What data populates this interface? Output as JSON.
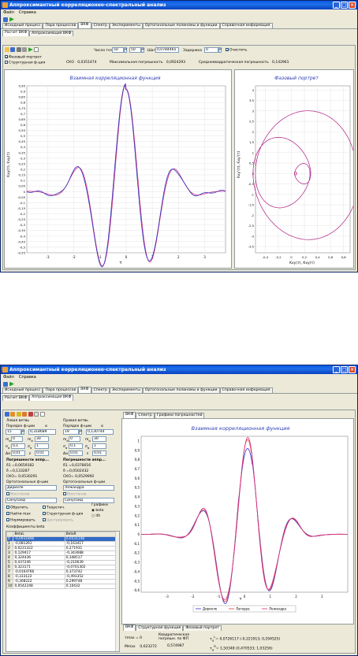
{
  "app": {
    "title": "Аппроксимантный корреляционно-спектральный анализ"
  },
  "menu": [
    "Файл",
    "Справка"
  ],
  "main_tabs": [
    "Исходный процесс",
    "Пара процессов",
    "ВКФ",
    "Спектр",
    "Эксперименты",
    "Ортогональные полиномы и функции",
    "Справочная информация"
  ],
  "top": {
    "subtabs": [
      "Расчет ВКФ",
      "Аппроксимация ВКФ"
    ],
    "points_label": "Число точек",
    "points1": "50",
    "points2": "50",
    "step_label": "Шаг",
    "step": "0,0784465",
    "delay_label": "Задержка",
    "delay": "0",
    "clear_label": "Очистить",
    "phase_label": "Фазовый портрет",
    "struct_label": "Структурная ф-ция",
    "sko_label": "СКО",
    "sko": "0,0351474",
    "maxerr_label": "Максимальная погрешность",
    "maxerr": "0,0924293",
    "rms_label": "Среднеквадратическая погрешность",
    "rms": "0,142961",
    "chart1": {
      "title": "Взаимная корреляционная функция",
      "ylabel": "Kxy(τ), Kxy(τ)",
      "xlabel": "τ",
      "yticks": [
        "0,95",
        "0,9",
        "0,85",
        "0,8",
        "0,75",
        "0,7",
        "0,65",
        "0,6",
        "0,55",
        "0,5",
        "0,45",
        "0,4",
        "0,35",
        "0,3",
        "0,25",
        "0,2",
        "0,15",
        "0,1",
        "0,05",
        "0",
        "-0,05",
        "-0,1",
        "-0,15",
        "-0,2",
        "-0,25",
        "-0,3",
        "-0,35",
        "-0,4",
        "-0,45",
        "-0,5",
        "-0,55"
      ],
      "xticks": [
        "-3",
        "-2",
        "-1",
        "0",
        "1",
        "2",
        "3"
      ]
    },
    "chart2": {
      "title": "Фазовый портрет",
      "ylabel": "Kxy'(τ), Kxy'(τ)",
      "xlabel": "Kxy(τ), Kxy(τ)",
      "yticks": [
        "4",
        "3,5",
        "3",
        "2,5",
        "2",
        "1,5",
        "1",
        "0,5",
        "0",
        "-0,5",
        "-1",
        "-1,5",
        "-2",
        "-2,5",
        "-3",
        "-3,5"
      ],
      "xticks": [
        "-0,4",
        "-0,2",
        "0",
        "0,2",
        "0,4",
        "0,6",
        "0,8"
      ]
    }
  },
  "bottom": {
    "subtabs": [
      "Расчет ВКФ",
      "Аппроксимация ВКФ"
    ],
    "right_tabs": [
      "ВКФ",
      "Спектр",
      "Графики погрешностей"
    ],
    "left_branch": "Левая ветвь",
    "right_branch": "Правая ветвь",
    "order_label": "Порядок ф-ции",
    "alpha_label": "α",
    "left_order": "15",
    "left_alpha": "0,318689",
    "right_order": "19",
    "right_alpha": "0,130744",
    "m_l1": "0",
    "m_l2": "30",
    "m_r1": "0",
    "m_r2": "30",
    "s_l1": "0,1",
    "s_l2": "1",
    "s_r1": "0,1",
    "s_r2": "1",
    "d_l1": "0,01",
    "d_l2": "0,01",
    "d_r1": "0,01",
    "d_r2": "0,01",
    "err_title": "Погрешности аппр...",
    "d1_l": "δ1 =0,0659182",
    "d_l": "δ =0,133287",
    "sko_l": "СКО= 0,0530291",
    "d1_r": "δ1 =0,0378016",
    "d_r": "δ =0,0502432",
    "sko_r": "СКО= 0,0529992",
    "orth_label": "Ортогональные ф-ции",
    "orth_l": "Дирихле",
    "orth_r": "Лежандра",
    "orth_l2": "Синусоид",
    "orth_r2": "Синусоид",
    "restore_label": "Восстанов",
    "cb": [
      "Обратить",
      "Найти max",
      "Нормировать",
      "Теоретич.",
      "Структурная ф-ция",
      "Центрировать"
    ],
    "graphs_label": "Графики",
    "r1": "beta",
    "r2": "ith",
    "coef_label": "Коэффициенты beta",
    "grid_head": [
      "",
      "BetaL",
      "BetaR"
    ],
    "grid": [
      [
        "0",
        "-0,0931896",
        "0,0531148"
      ],
      [
        "1",
        "-0,081261",
        "-0,163417"
      ],
      [
        "2",
        "0,0231322",
        "0,271931"
      ],
      [
        "3",
        "0,129417",
        "-0,343688"
      ],
      [
        "4",
        "0,324436",
        "0,348517"
      ],
      [
        "5",
        "0,437246",
        "-0,210639"
      ],
      [
        "6",
        "0,323171",
        "-0,0701302"
      ],
      [
        "7",
        "-0,0164766",
        "0,373742"
      ],
      [
        "8",
        "-0,333122",
        "-0,493352"
      ],
      [
        "9",
        "-0,308222",
        "0,299748"
      ],
      [
        "10",
        "0,0542248",
        "0,10432"
      ]
    ],
    "chart": {
      "title": "Взаимная корреляционная функция",
      "yticks": [
        "1",
        "0,9",
        "0,8",
        "0,7",
        "0,6",
        "0,5",
        "0,4",
        "0,3",
        "0,2",
        "0,1",
        "0",
        "-0,1",
        "-0,2",
        "-0,3",
        "-0,4",
        "-0,5",
        "-0,6"
      ],
      "xticks": [
        "-3",
        "-2",
        "-1",
        "0",
        "1",
        "2",
        "3"
      ],
      "xlabel": "τ",
      "legend": [
        "Дирихле",
        "Лагерра",
        "Лежандра"
      ]
    },
    "bot_tabs": [
      "ВКФ",
      "Структурная функция",
      "Фазовый портрет"
    ],
    "tmax_label": "τmax =",
    "tmax": "0",
    "mmax_label": "Mmax",
    "mmax": "0,623272",
    "quad_label": "Квадратическая погрешн. по ФП",
    "quad": "0,574987",
    "tau_l": "0,0726117 (-0,221913; 0,294525)",
    "tau_r": "1,50348 (0,470533; 1,03256)"
  }
}
